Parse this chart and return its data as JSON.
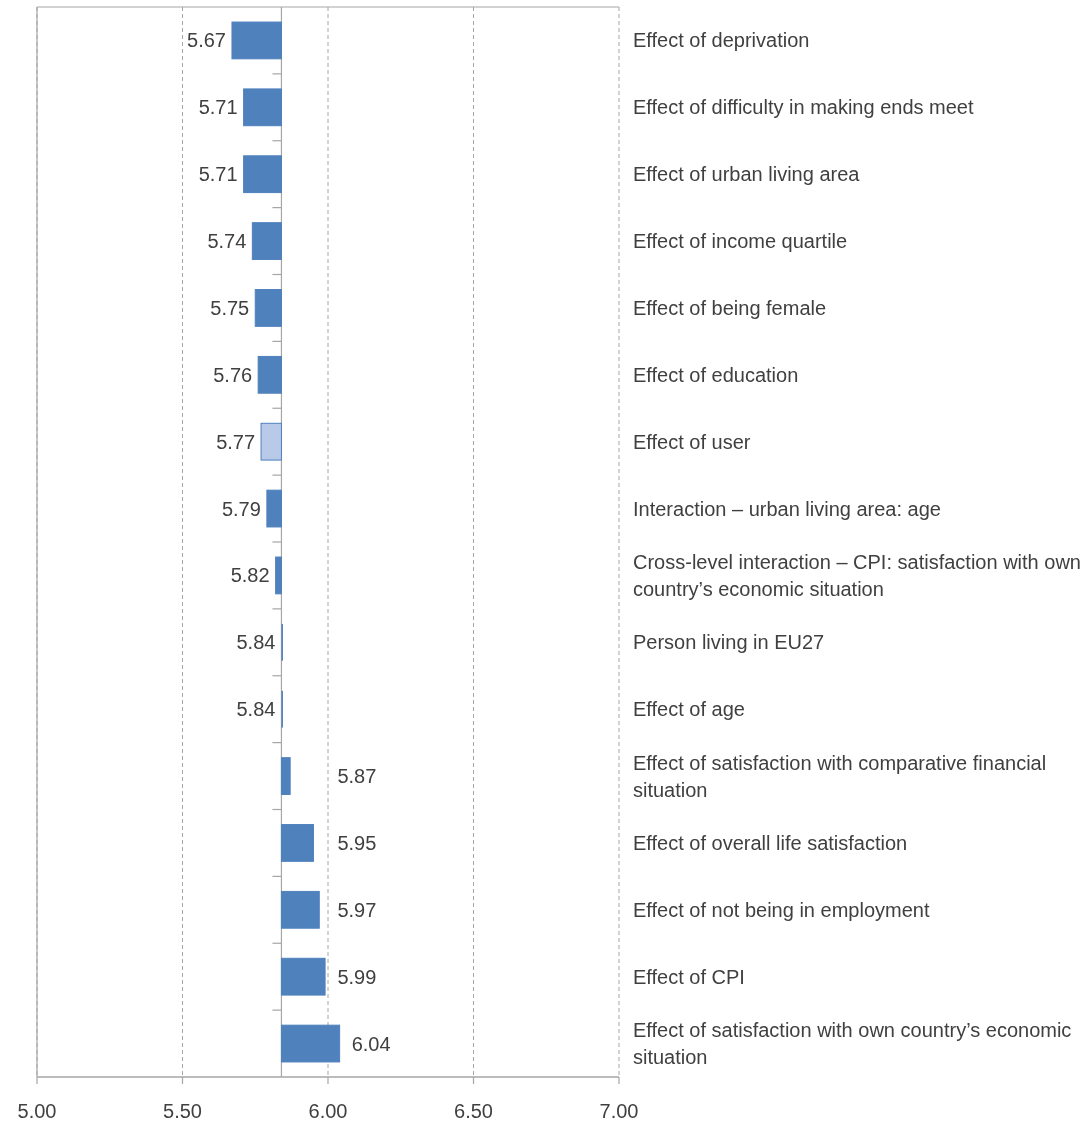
{
  "chart_data": {
    "type": "bar",
    "orientation": "horizontal",
    "categories": [
      "Effect of deprivation",
      "Effect of difficulty in making ends meet",
      "Effect of urban living area",
      "Effect of income quartile",
      "Effect of being female",
      "Effect of education",
      "Effect of user",
      "Interaction – urban living area: age",
      "Cross-level interaction – CPI: satisfaction with own country’s economic situation",
      "Person living in EU27",
      "Effect of age",
      "Effect of satisfaction with comparative financial situation",
      "Effect of overall life satisfaction",
      "Effect of not being in employment",
      "Effect of CPI",
      "Effect of satisfaction with own country’s economic situation"
    ],
    "base": [
      5.84,
      5.84,
      5.84,
      5.84,
      5.84,
      5.84,
      5.84,
      5.84,
      5.84,
      5.84,
      5.84,
      5.84,
      5.84,
      5.84,
      5.84,
      5.84
    ],
    "values": [
      -0.17,
      -0.13,
      -0.13,
      -0.1,
      -0.09,
      -0.08,
      -0.07,
      -0.05,
      -0.02,
      0,
      0,
      0.03,
      0.11,
      0.13,
      0.15,
      0.2
    ],
    "value_labels": [
      "5.67",
      "5.71",
      "5.71",
      "5.74",
      "5.75",
      "5.76",
      "5.77",
      "5.79",
      "5.82",
      "5.84",
      "5.84",
      "5.87",
      "5.95",
      "5.97",
      "5.99",
      "6.04"
    ],
    "color": "#4f81bd",
    "colors": [
      "#4f81bd",
      "#4f81bd",
      "#4f81bd",
      "#4f81bd",
      "#4f81bd",
      "#4f81bd",
      "#b9c9e8",
      "#4f81bd",
      "#4f81bd",
      "#4f81bd",
      "#4f81bd",
      "#4f81bd",
      "#4f81bd",
      "#4f81bd",
      "#4f81bd",
      "#4f81bd"
    ],
    "xlim": [
      5,
      7
    ],
    "xticks": [
      {
        "value": 5,
        "label": "5.00"
      },
      {
        "value": 5.5,
        "label": "5.50"
      },
      {
        "value": 6,
        "label": "6.00"
      },
      {
        "value": 6.5,
        "label": "6.50"
      },
      {
        "value": 7,
        "label": "7.00"
      }
    ],
    "ref_lines": [
      {
        "axis": "x",
        "value": 5.84
      }
    ],
    "grid": "x"
  }
}
